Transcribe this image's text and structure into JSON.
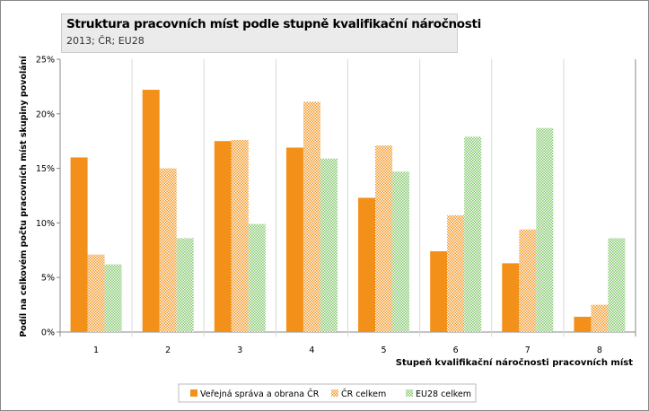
{
  "chart_data": {
    "type": "bar",
    "title": "Struktura pracovních míst podle stupně kvalifikační náročnosti",
    "subtitle": "2013; ČR; EU28",
    "xlabel": "Stupeň kvalifikační náročnosti pracovních míst",
    "ylabel": "Podíl na celkovém počtu pracovních míst skupiny povolání",
    "categories": [
      "1",
      "2",
      "3",
      "4",
      "5",
      "6",
      "7",
      "8"
    ],
    "ylim": [
      0,
      25
    ],
    "yticks": [
      0,
      5,
      10,
      15,
      20,
      25
    ],
    "ytick_labels": [
      "0%",
      "5%",
      "10%",
      "15%",
      "20%",
      "25%"
    ],
    "grid": "vertical group separators",
    "legend_position": "bottom",
    "series": [
      {
        "name": "Veřejná správa a obrana ČR",
        "color": "#f39019",
        "pattern": "solid",
        "values": [
          16.0,
          22.2,
          17.5,
          16.9,
          12.3,
          7.4,
          6.3,
          1.4
        ]
      },
      {
        "name": "ČR celkem",
        "color": "#f39019",
        "pattern": "checker",
        "values": [
          7.1,
          15.0,
          17.6,
          21.1,
          17.1,
          10.7,
          9.4,
          2.5
        ]
      },
      {
        "name": "EU28 celkem",
        "color": "#7dc466",
        "pattern": "checker",
        "values": [
          6.2,
          8.6,
          9.9,
          15.9,
          14.7,
          17.9,
          18.7,
          8.6
        ]
      }
    ]
  }
}
